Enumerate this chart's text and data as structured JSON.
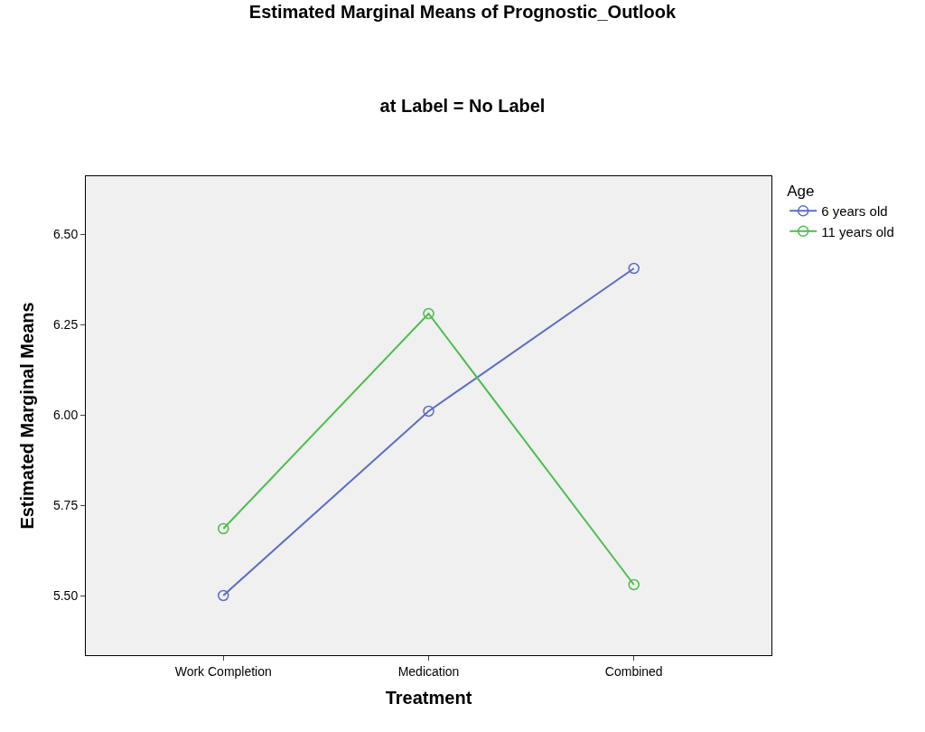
{
  "chart_data": {
    "type": "line",
    "title": "Estimated Marginal Means of Prognostic_Outlook",
    "subtitle": "at Label = No Label",
    "xlabel": "Treatment",
    "ylabel": "Estimated Marginal Means",
    "legend_title": "Age",
    "categories": [
      "Work Completion",
      "Medication",
      "Combined"
    ],
    "series": [
      {
        "name": "6 years old",
        "color": "#5a6dc6",
        "values": [
          5.5,
          6.01,
          6.405
        ]
      },
      {
        "name": "11 years old",
        "color": "#4dbd4d",
        "values": [
          5.685,
          6.28,
          5.53
        ]
      }
    ],
    "ylim": [
      5.335,
      6.66
    ],
    "yticks": [
      {
        "value": 5.5,
        "label": "5.50"
      },
      {
        "value": 5.75,
        "label": "5.75"
      },
      {
        "value": 6.0,
        "label": "6.00"
      },
      {
        "value": 6.25,
        "label": "6.25"
      },
      {
        "value": 6.5,
        "label": "6.50"
      }
    ],
    "grid": false,
    "legend": "top right",
    "marker": "circle",
    "line_style": "solid"
  }
}
